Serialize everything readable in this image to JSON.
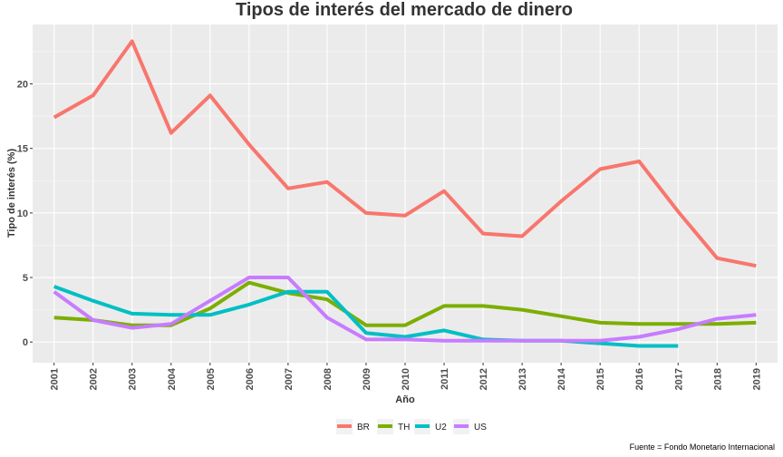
{
  "chart_data": {
    "type": "line",
    "title": "Tipos de interés del mercado de dinero",
    "xlabel": "Año",
    "ylabel": "Tipo de interés (%)",
    "caption": "Fuente = Fondo Monetario Internacional",
    "x": [
      2001,
      2002,
      2003,
      2004,
      2005,
      2006,
      2007,
      2008,
      2009,
      2010,
      2011,
      2012,
      2013,
      2014,
      2015,
      2016,
      2017,
      2018,
      2019
    ],
    "x_tick_labels": [
      "2001",
      "2002",
      "2003",
      "2004",
      "2005",
      "2006",
      "2007",
      "2008",
      "2009",
      "2010",
      "2011",
      "2012",
      "2013",
      "2014",
      "2015",
      "2016",
      "2017",
      "2018",
      "2019"
    ],
    "xlim": [
      2000.45,
      2019.55
    ],
    "ylim": [
      -1.6,
      24.6
    ],
    "y_ticks": [
      0,
      5,
      10,
      15,
      20
    ],
    "y_tick_labels": [
      "0",
      "5",
      "10",
      "15",
      "20"
    ],
    "grid": true,
    "legend_position": "bottom",
    "series": [
      {
        "name": "BR",
        "color": "#F8766D",
        "values": [
          17.4,
          19.1,
          23.3,
          16.2,
          19.1,
          15.3,
          11.9,
          12.4,
          10.0,
          9.8,
          11.7,
          8.4,
          8.2,
          10.9,
          13.4,
          14.0,
          10.1,
          6.5,
          5.9
        ]
      },
      {
        "name": "TH",
        "color": "#7CAE00",
        "values": [
          1.9,
          1.7,
          1.3,
          1.3,
          2.6,
          4.6,
          3.8,
          3.3,
          1.3,
          1.3,
          2.8,
          2.8,
          2.5,
          2.0,
          1.5,
          1.4,
          1.4,
          1.4,
          1.5
        ]
      },
      {
        "name": "U2",
        "color": "#00BFC4",
        "values": [
          4.3,
          3.2,
          2.2,
          2.1,
          2.1,
          2.9,
          3.9,
          3.9,
          0.7,
          0.4,
          0.9,
          0.2,
          0.1,
          0.1,
          -0.1,
          -0.3,
          -0.3,
          null,
          null
        ]
      },
      {
        "name": "US",
        "color": "#C77CFF",
        "values": [
          3.9,
          1.7,
          1.1,
          1.4,
          3.2,
          5.0,
          5.0,
          1.9,
          0.2,
          0.2,
          0.1,
          0.1,
          0.1,
          0.1,
          0.1,
          0.4,
          1.0,
          1.8,
          2.1
        ]
      }
    ]
  }
}
